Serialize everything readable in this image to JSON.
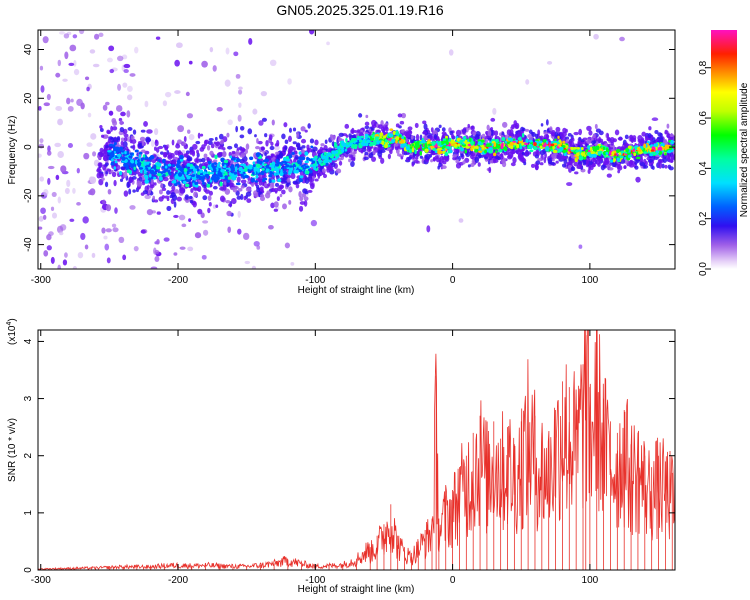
{
  "title": "GN05.2025.325.01.19.R16",
  "chart_data": [
    {
      "type": "heatmap",
      "title": "GN05.2025.325.01.19.R16",
      "xlabel": "Height of straight line (km)",
      "ylabel": "Frequency (Hz)",
      "xlim": [
        -302,
        162
      ],
      "ylim": [
        -50,
        48
      ],
      "xticks": [
        -300,
        -200,
        -100,
        0,
        100
      ],
      "yticks": [
        -40,
        -20,
        0,
        20,
        40
      ],
      "colorbar": {
        "label": "Normalized spectral amplitude",
        "range": [
          0,
          0.95
        ],
        "ticks": [
          0,
          0.2,
          0.4,
          0.6,
          0.8
        ],
        "colors": [
          "#ffffff",
          "#d8b8f0",
          "#8a2be2",
          "#0000ff",
          "#00e5ff",
          "#00ff00",
          "#ffff00",
          "#ff8800",
          "#ff0000",
          "#ff00ff"
        ]
      },
      "ridge": {
        "x": [
          -250,
          -230,
          -210,
          -190,
          -170,
          -150,
          -130,
          -110,
          -100,
          -90,
          -80,
          -70,
          -60,
          -50,
          -40,
          -30,
          -20,
          -10,
          0,
          10,
          20,
          30,
          40,
          50,
          60,
          70,
          80,
          90,
          100,
          110,
          120,
          130,
          140,
          150,
          160
        ],
        "freq_hz": [
          -2,
          -7,
          -10,
          -11,
          -10,
          -9,
          -9,
          -8,
          -7,
          -4,
          0,
          2,
          3,
          3,
          4,
          0,
          1,
          0,
          1,
          1,
          0,
          0,
          1,
          2,
          1,
          1,
          0,
          -3,
          -2,
          -1,
          -4,
          -2,
          -1,
          -1,
          0
        ]
      }
    },
    {
      "type": "line",
      "xlabel": "Height of straight line (km)",
      "ylabel": "SNR (10 * v/v)",
      "multiplier_label": "(x10",
      "multiplier_exp": "4",
      "xlim": [
        -302,
        162
      ],
      "ylim": [
        0,
        4.2
      ],
      "xticks": [
        -300,
        -200,
        -100,
        0,
        100
      ],
      "yticks": [
        0,
        1,
        2,
        3,
        4
      ],
      "series": [
        {
          "name": "SNR",
          "color": "#e8302a",
          "x": [
            -300,
            -280,
            -260,
            -250,
            -240,
            -230,
            -220,
            -210,
            -200,
            -190,
            -180,
            -170,
            -160,
            -150,
            -140,
            -130,
            -120,
            -110,
            -100,
            -90,
            -80,
            -70,
            -60,
            -55,
            -50,
            -45,
            -40,
            -35,
            -30,
            -25,
            -20,
            -15,
            -12,
            -10,
            -5,
            0,
            5,
            10,
            15,
            20,
            25,
            30,
            35,
            40,
            45,
            50,
            55,
            60,
            65,
            70,
            75,
            80,
            85,
            90,
            95,
            97,
            100,
            105,
            110,
            115,
            120,
            125,
            130,
            135,
            140,
            145,
            150,
            155,
            160
          ],
          "y": [
            0.02,
            0.03,
            0.04,
            0.05,
            0.06,
            0.06,
            0.06,
            0.08,
            0.09,
            0.08,
            0.09,
            0.08,
            0.07,
            0.07,
            0.09,
            0.12,
            0.18,
            0.12,
            0.07,
            0.08,
            0.1,
            0.2,
            0.4,
            0.6,
            0.8,
            1.15,
            0.6,
            0.4,
            0.3,
            0.5,
            0.7,
            0.9,
            3.4,
            0.9,
            1.3,
            1.4,
            1.8,
            2.0,
            2.4,
            2.7,
            2.2,
            2.6,
            2.3,
            2.5,
            2.2,
            2.6,
            3.1,
            2.7,
            2.4,
            2.3,
            2.8,
            3.3,
            3.2,
            2.9,
            3.6,
            4.2,
            3.2,
            3.95,
            3.0,
            2.6,
            2.4,
            2.8,
            2.2,
            2.4,
            2.0,
            1.8,
            2.0,
            1.9,
            1.7
          ]
        }
      ]
    }
  ]
}
